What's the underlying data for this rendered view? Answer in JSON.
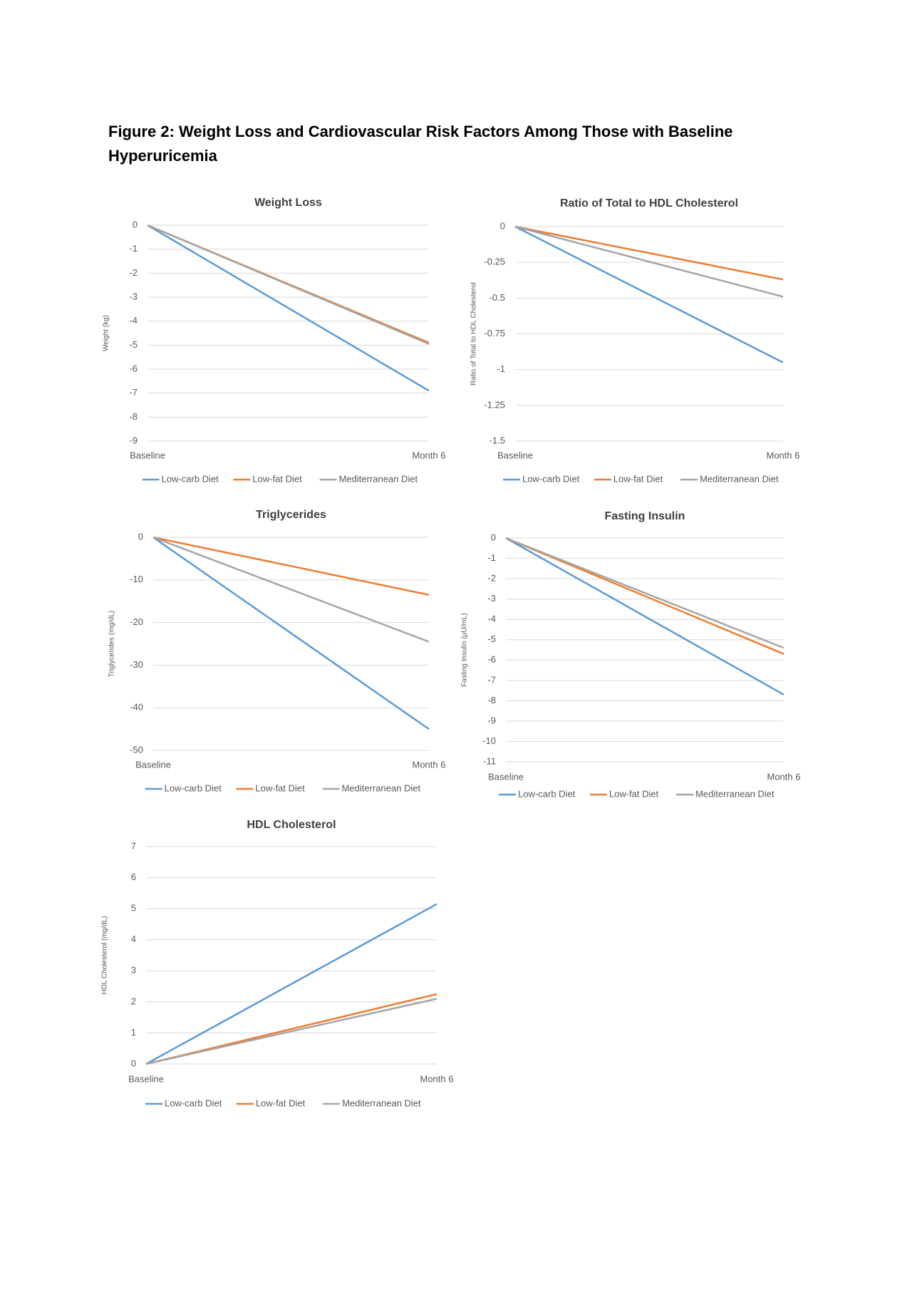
{
  "title": "Figure 2: Weight Loss and Cardiovascular Risk Factors Among Those with Baseline Hyperuricemia",
  "chart_data": [
    {
      "type": "line",
      "title": "Weight Loss",
      "y_label": "Weight (kg)",
      "categories": [
        "Baseline",
        "Month 6"
      ],
      "ylim": [
        -9,
        0
      ],
      "yticks": [
        0,
        -1,
        -2,
        -3,
        -4,
        -5,
        -6,
        -7,
        -8,
        -9
      ],
      "grid": true,
      "series": [
        {
          "name": "Low-carb Diet",
          "color": "#5b9bd5",
          "values": [
            0,
            -6.9
          ]
        },
        {
          "name": "Low-fat Diet",
          "color": "#ed7d31",
          "values": [
            0,
            -4.9
          ]
        },
        {
          "name": "Mediterranean Diet",
          "color": "#a5a5a5",
          "values": [
            0,
            -4.95
          ]
        }
      ]
    },
    {
      "type": "line",
      "title": "Ratio of Total to HDL Cholesterol",
      "y_label": "Ratio of Total to HDL Cholesterol",
      "categories": [
        "Baseline",
        "Month 6"
      ],
      "ylim": [
        -1.5,
        0
      ],
      "yticks": [
        0,
        -0.25,
        -0.5,
        -0.75,
        -1,
        -1.25,
        -1.5
      ],
      "grid": true,
      "series": [
        {
          "name": "Low-carb Diet",
          "color": "#5b9bd5",
          "values": [
            0,
            -0.95
          ]
        },
        {
          "name": "Low-fat Diet",
          "color": "#ed7d31",
          "values": [
            0,
            -0.37
          ]
        },
        {
          "name": "Mediterranean Diet",
          "color": "#a5a5a5",
          "values": [
            0,
            -0.49
          ]
        }
      ]
    },
    {
      "type": "line",
      "title": "Triglycerides",
      "y_label": "Triglycerides (mg/dL)",
      "categories": [
        "Baseline",
        "Month 6"
      ],
      "ylim": [
        -50,
        0
      ],
      "yticks": [
        0,
        -10,
        -20,
        -30,
        -40,
        -50
      ],
      "grid": true,
      "series": [
        {
          "name": "Low-carb Diet",
          "color": "#5b9bd5",
          "values": [
            0,
            -45
          ]
        },
        {
          "name": "Low-fat Diet",
          "color": "#ed7d31",
          "values": [
            0,
            -13.5
          ]
        },
        {
          "name": "Mediterranean Diet",
          "color": "#a5a5a5",
          "values": [
            0,
            -24.5
          ]
        }
      ]
    },
    {
      "type": "line",
      "title": "Fasting Insulin",
      "y_label": "Fasting Insulin (μU/mL)",
      "categories": [
        "Baseline",
        "Month 6"
      ],
      "ylim": [
        -11,
        0
      ],
      "yticks": [
        0,
        -1,
        -2,
        -3,
        -4,
        -5,
        -6,
        -7,
        -8,
        -9,
        -10,
        -11
      ],
      "grid": true,
      "series": [
        {
          "name": "Low-carb Diet",
          "color": "#5b9bd5",
          "values": [
            0,
            -7.7
          ]
        },
        {
          "name": "Low-fat Diet",
          "color": "#ed7d31",
          "values": [
            0,
            -5.7
          ]
        },
        {
          "name": "Mediterranean Diet",
          "color": "#a5a5a5",
          "values": [
            0,
            -5.4
          ]
        }
      ]
    },
    {
      "type": "line",
      "title": "HDL Cholesterol",
      "y_label": "HDL Cholesterol (mg/dL)",
      "categories": [
        "Baseline",
        "Month 6"
      ],
      "ylim": [
        0,
        7
      ],
      "yticks": [
        0,
        1,
        2,
        3,
        4,
        5,
        6,
        7
      ],
      "grid": true,
      "series": [
        {
          "name": "Low-carb Diet",
          "color": "#5b9bd5",
          "values": [
            0,
            5.15
          ]
        },
        {
          "name": "Low-fat Diet",
          "color": "#ed7d31",
          "values": [
            0,
            2.25
          ]
        },
        {
          "name": "Mediterranean Diet",
          "color": "#a5a5a5",
          "values": [
            0,
            2.1
          ]
        }
      ]
    }
  ]
}
